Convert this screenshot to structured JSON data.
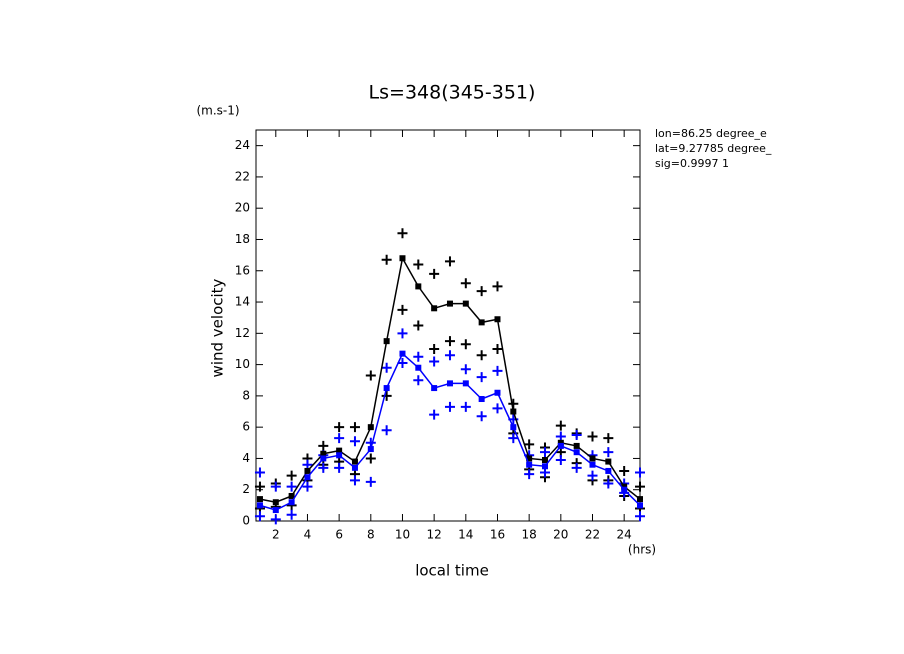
{
  "chart_data": {
    "type": "line",
    "title": "Ls=348(345-351)",
    "y_unit": "(m.s-1)",
    "y_label": "wind velocity",
    "x_label": "local time",
    "x_unit": "(hrs)",
    "annotations": [
      "lon=86.25 degree_e",
      "lat=9.27785 degree_",
      "sig=0.9997 1"
    ],
    "x": [
      1,
      2,
      3,
      4,
      5,
      6,
      7,
      8,
      9,
      10,
      11,
      12,
      13,
      14,
      15,
      16,
      17,
      18,
      19,
      20,
      21,
      22,
      23,
      24,
      25
    ],
    "xlim": [
      0.75,
      25.0
    ],
    "ylim": [
      0,
      25
    ],
    "xticks": [
      2,
      4,
      6,
      8,
      10,
      12,
      14,
      16,
      18,
      20,
      22,
      24
    ],
    "yticks": [
      0,
      2,
      4,
      6,
      8,
      10,
      12,
      14,
      16,
      18,
      20,
      22,
      24
    ],
    "series": [
      {
        "color": "#000000",
        "values": [
          1.4,
          1.2,
          1.6,
          3.2,
          4.3,
          4.5,
          3.8,
          6.0,
          11.5,
          16.8,
          15.0,
          13.6,
          13.9,
          13.9,
          12.7,
          12.9,
          7.0,
          4.0,
          3.9,
          5.0,
          4.8,
          4.0,
          3.8,
          2.2,
          1.4
        ]
      },
      {
        "color": "#0000ff",
        "values": [
          1.0,
          0.7,
          1.2,
          2.8,
          4.0,
          4.2,
          3.4,
          4.6,
          8.5,
          10.7,
          9.8,
          8.5,
          8.8,
          8.8,
          7.8,
          8.2,
          6.0,
          3.6,
          3.5,
          4.8,
          4.4,
          3.6,
          3.2,
          2.0,
          1.0
        ]
      }
    ],
    "scatter": [
      {
        "color": "#000000",
        "values": [
          2.2,
          2.4,
          2.9,
          4.0,
          4.8,
          6.0,
          6.0,
          9.3,
          16.7,
          18.4,
          16.4,
          15.8,
          16.6,
          15.2,
          14.7,
          15.0,
          7.5,
          4.9,
          4.7,
          6.1,
          5.6,
          5.4,
          5.3,
          3.2,
          2.2
        ]
      },
      {
        "color": "#000000",
        "values": [
          0.8,
          0.9,
          1.0,
          2.6,
          3.6,
          3.8,
          3.0,
          4.0,
          8.0,
          13.5,
          12.5,
          11.0,
          11.5,
          11.3,
          10.6,
          11.0,
          5.6,
          3.3,
          2.8,
          4.4,
          3.7,
          2.6,
          2.6,
          1.6,
          0.8
        ]
      },
      {
        "color": "#0000ff",
        "values": [
          3.1,
          2.2,
          2.2,
          3.6,
          4.2,
          5.3,
          5.1,
          5.0,
          9.8,
          12.0,
          10.5,
          10.2,
          10.6,
          9.7,
          9.2,
          9.6,
          6.5,
          4.2,
          4.4,
          5.4,
          5.5,
          4.2,
          4.4,
          2.4,
          3.1
        ]
      },
      {
        "color": "#0000ff",
        "values": [
          0.3,
          0.1,
          0.4,
          2.2,
          3.4,
          3.4,
          2.6,
          2.5,
          5.8,
          10.1,
          9.0,
          6.8,
          7.3,
          7.3,
          6.7,
          7.2,
          5.3,
          3.0,
          3.1,
          3.9,
          3.4,
          2.9,
          2.4,
          1.8,
          0.3
        ]
      }
    ]
  }
}
